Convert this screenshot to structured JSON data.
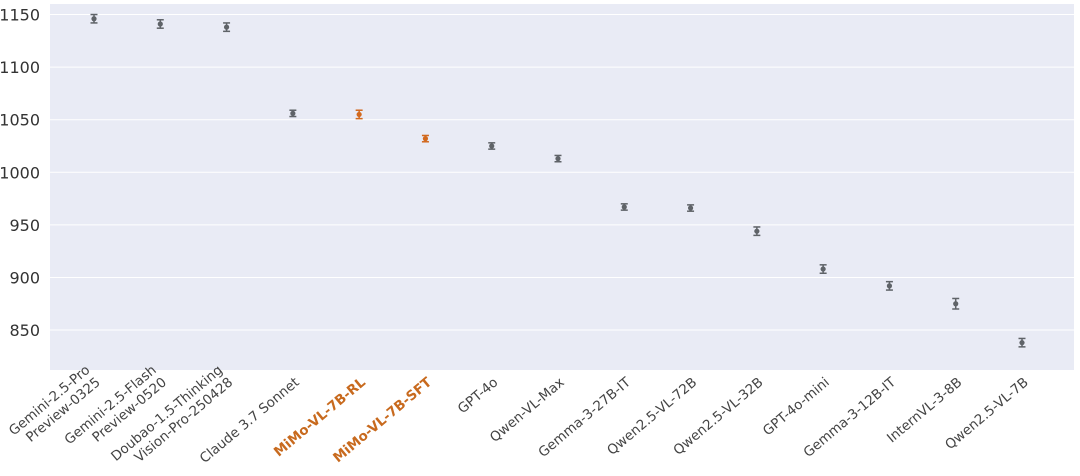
{
  "chart_data": {
    "type": "scatter",
    "title": "",
    "xlabel": "",
    "ylabel": "",
    "ylim": [
      812,
      1160
    ],
    "yticks": [
      850,
      900,
      950,
      1000,
      1050,
      1100,
      1150
    ],
    "grid": true,
    "colors": {
      "plot_bg": "#e9ebf5",
      "grid": "#ffffff",
      "default_point": "#5f6368",
      "highlight_point": "#d2691e",
      "default_label": "#444444",
      "highlight_label": "#c86a1e"
    },
    "categories": [
      "Gemini-2.5-Pro\nPreview-0325",
      "Gemini-2.5-Flash\nPreview-0520",
      "Doubao-1.5-Thinking\nVision-Pro-250428",
      "Claude 3.7 Sonnet",
      "MiMo-VL-7B-RL",
      "MiMo-VL-7B-SFT",
      "GPT-4o",
      "Qwen-VL-Max",
      "Gemma-3-27B-IT",
      "Qwen2.5-VL-72B",
      "Qwen2.5-VL-32B",
      "GPT-4o-mini",
      "Gemma-3-12B-IT",
      "InternVL-3-8B",
      "Qwen2.5-VL-7B"
    ],
    "highlight": [
      false,
      false,
      false,
      false,
      true,
      true,
      false,
      false,
      false,
      false,
      false,
      false,
      false,
      false,
      false
    ],
    "values": [
      1146,
      1141,
      1138,
      1056,
      1055,
      1032,
      1025,
      1013,
      967,
      966,
      944,
      908,
      892,
      875,
      838
    ],
    "error_low": [
      4,
      4,
      4,
      3,
      4,
      3,
      3,
      3,
      3,
      3,
      4,
      4,
      4,
      5,
      4
    ],
    "error_high": [
      4,
      4,
      4,
      3,
      4,
      3,
      3,
      3,
      3,
      3,
      4,
      4,
      4,
      5,
      4
    ]
  }
}
